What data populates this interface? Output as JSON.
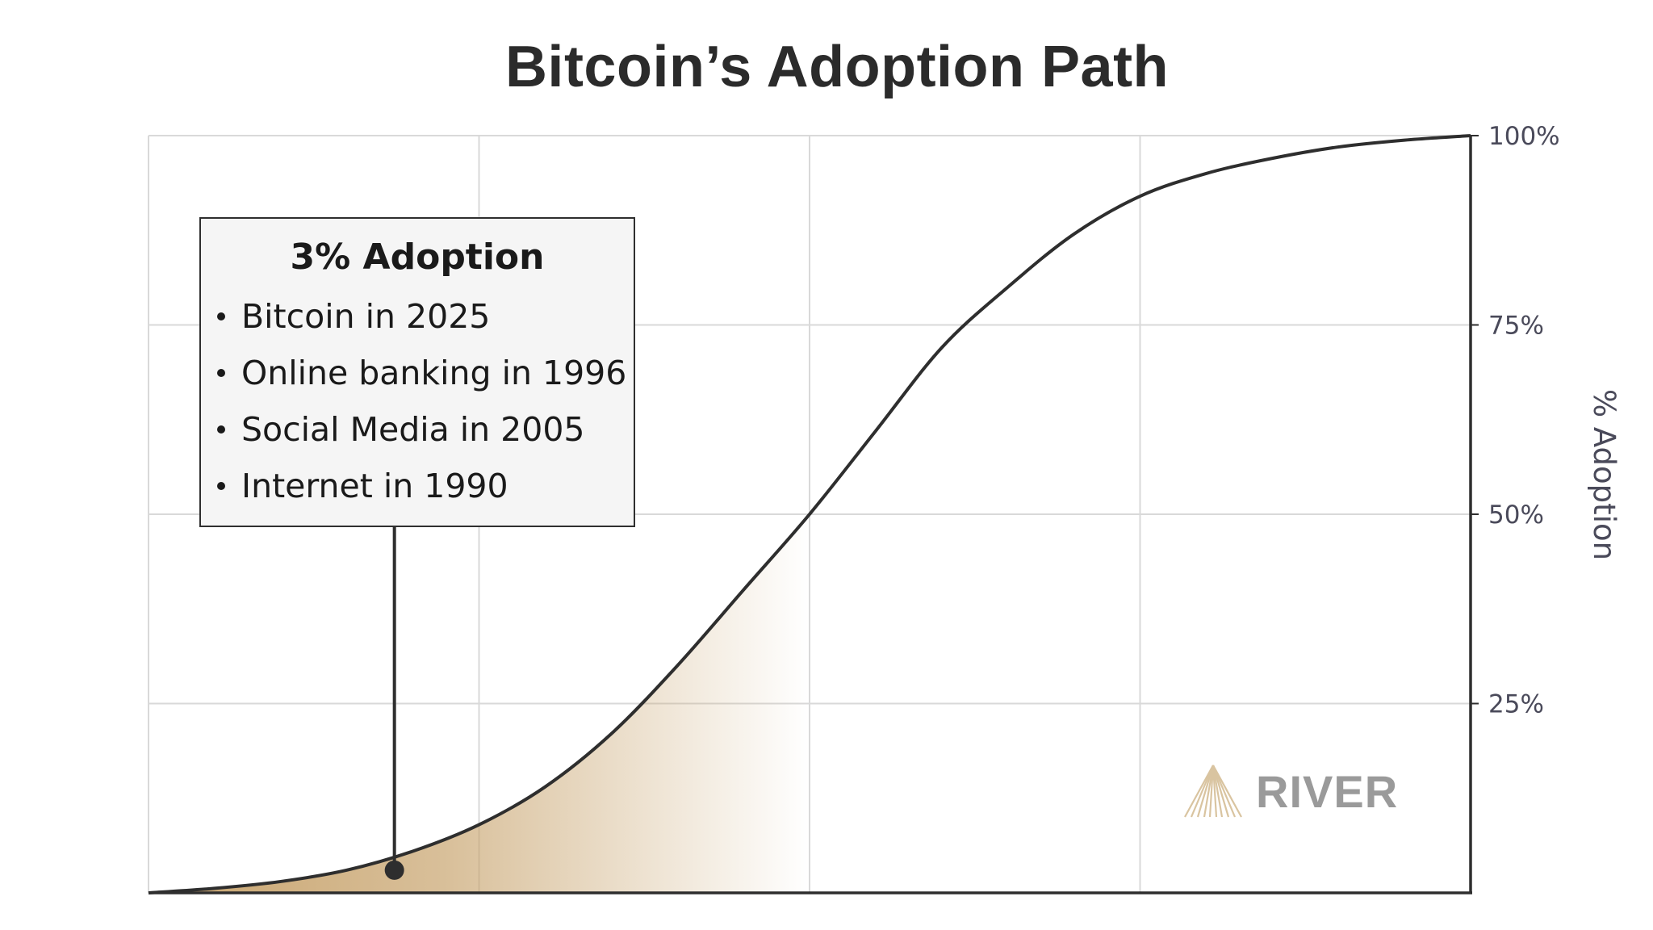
{
  "chart_data": {
    "type": "area",
    "title": "Bitcoin’s Adoption Path",
    "ylabel": "% Adoption",
    "xlabel": "",
    "ylim": [
      0,
      100
    ],
    "y_ticks": [
      "25%",
      "50%",
      "75%",
      "100%"
    ],
    "y_tick_values": [
      25,
      50,
      75,
      100
    ],
    "y_axis_side": "right",
    "grid": true,
    "series": [
      {
        "curve": "logistic s-curve",
        "x": [
          0,
          5,
          10,
          15,
          20,
          25,
          30,
          35,
          40,
          45,
          50,
          55,
          60,
          65,
          70,
          75,
          80,
          85,
          90,
          95,
          100
        ],
        "y": [
          0,
          0.6,
          1.5,
          3,
          5.5,
          9,
          14,
          21,
          30,
          40,
          50,
          61,
          72,
          80,
          87,
          92,
          95,
          97,
          98.5,
          99.4,
          100
        ]
      }
    ],
    "marker": {
      "x": 18.6,
      "y": 3
    },
    "shaded_region": {
      "x_start": 0,
      "x_end": 50,
      "color": "#c8a46e"
    },
    "annotation": {
      "title": "3% Adoption",
      "items": [
        "Bitcoin in 2025",
        "Online banking in 1996",
        "Social Media in 2005",
        "Internet in 1990"
      ]
    }
  },
  "colors": {
    "curve": "#2e2e2e",
    "fill_gold": "#c8a46e",
    "grid": "#d9d9d9",
    "axis": "#2e2e2e",
    "tick_text": "#4a4a5a",
    "logo_mark": "#d9c4a0",
    "logo_text": "#9a9a9a"
  },
  "logo": {
    "text": "RIVER",
    "icon": "river-mountain-icon"
  }
}
